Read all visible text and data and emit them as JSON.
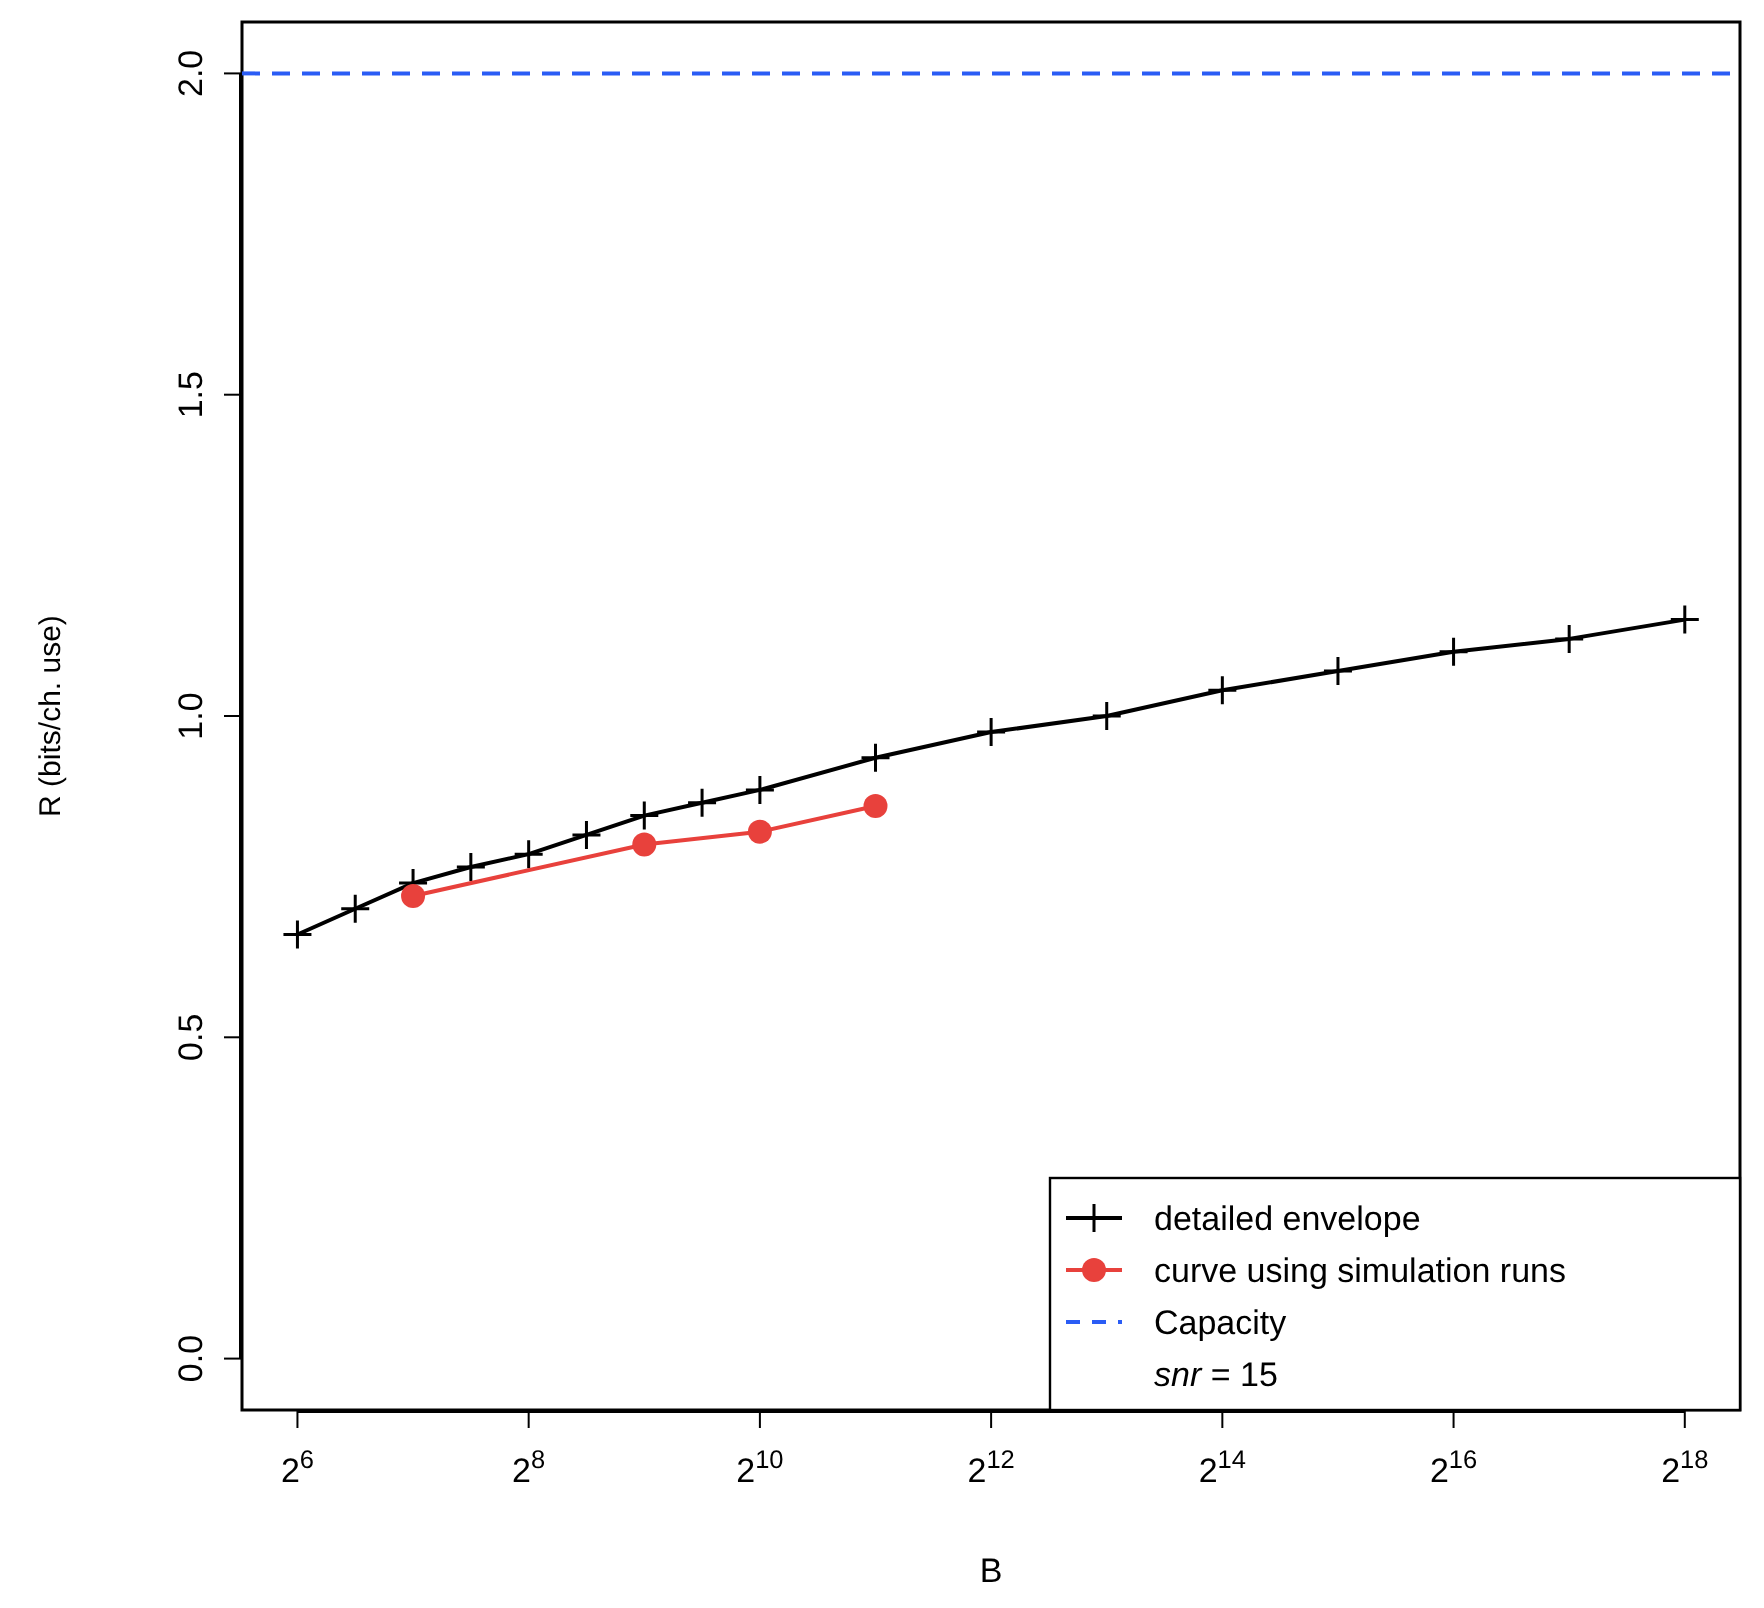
{
  "chart_data": {
    "type": "line",
    "xlabel": "B",
    "ylabel": "R (bits/ch. use)",
    "log": "x",
    "xlim": [
      45.9,
      365000
    ],
    "ylim": [
      -0.08,
      2.08
    ],
    "xticks": [
      {
        "value": 64,
        "label": "2$^{6}$"
      },
      {
        "value": 256,
        "label": "2$^{8}$"
      },
      {
        "value": 1024,
        "label": "2$^{10}$"
      },
      {
        "value": 4096,
        "label": "2$^{12}$"
      },
      {
        "value": 16384,
        "label": "2$^{14}$"
      },
      {
        "value": 65536,
        "label": "2$^{16}$"
      },
      {
        "value": 262144,
        "label": "2$^{18}$"
      }
    ],
    "yticks": [
      {
        "value": 0,
        "label": "0.0"
      },
      {
        "value": 0.5,
        "label": "0.5"
      },
      {
        "value": 1,
        "label": "1.0"
      },
      {
        "value": 1.5,
        "label": "1.5"
      },
      {
        "value": 2,
        "label": "2.0"
      }
    ],
    "series": [
      {
        "name": "detailed envelope",
        "color": "#000000",
        "marker": "cross",
        "x": [
          64,
          90.5,
          128,
          181,
          256,
          362,
          512,
          724,
          1024,
          2048,
          4096,
          8192,
          16384,
          32768,
          65536,
          131072,
          262144
        ],
        "values": [
          0.66,
          0.7,
          0.74,
          0.765,
          0.785,
          0.815,
          0.845,
          0.865,
          0.885,
          0.935,
          0.975,
          1.0,
          1.04,
          1.07,
          1.1,
          1.12,
          1.15
        ]
      },
      {
        "name": "curve using simulation runs",
        "color": "#e8413c",
        "marker": "circle",
        "x": [
          128,
          512,
          1024,
          2048
        ],
        "values": [
          0.72,
          0.8,
          0.82,
          0.86
        ]
      }
    ],
    "ref_lines": [
      {
        "axis": "y",
        "value": 2,
        "label": "Capacity",
        "color": "#2a5cf5",
        "line_style": "dashed"
      }
    ],
    "annotations": [
      "snr = 15"
    ],
    "legend": "bottom right",
    "grid": false
  }
}
